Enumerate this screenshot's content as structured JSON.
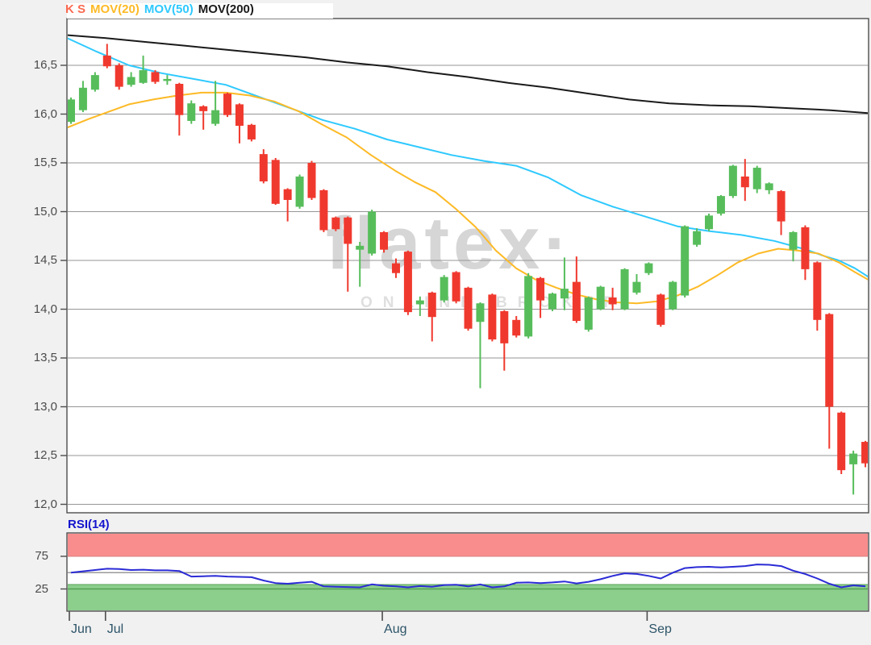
{
  "window": {
    "background": "#f1f1f1",
    "plot_background": "#ffffff",
    "border_color": "#4d4d4d",
    "grid_color": "#969696",
    "tick_color": "#4d4d4d"
  },
  "legend": {
    "items": [
      {
        "label": "K S",
        "color": "#fa6a52"
      },
      {
        "label": "MOV(20)",
        "color": "#fdba26"
      },
      {
        "label": "MOV(50)",
        "color": "#2ec9ff"
      },
      {
        "label": "MOV(200)",
        "color": "#1a1a1a"
      }
    ]
  },
  "watermark": {
    "line1": "flatex·",
    "line2": "ONLINE BROKER",
    "color1": "#d6d6d6",
    "color2": "#dfdfdf"
  },
  "price_axis": {
    "label_color": "#4b4b4b",
    "ticks": [
      {
        "label": "16,5",
        "value": 16.5
      },
      {
        "label": "16,0",
        "value": 16.0
      },
      {
        "label": "15,5",
        "value": 15.5
      },
      {
        "label": "15,0",
        "value": 15.0
      },
      {
        "label": "14,5",
        "value": 14.5
      },
      {
        "label": "14,0",
        "value": 14.0
      },
      {
        "label": "13,5",
        "value": 13.5
      },
      {
        "label": "13,0",
        "value": 13.0
      },
      {
        "label": "12,5",
        "value": 12.5
      },
      {
        "label": "12,0",
        "value": 12.0
      }
    ]
  },
  "time_axis": {
    "label_color": "#2d5468",
    "months": [
      {
        "label": "Jun",
        "candle_index": 0
      },
      {
        "label": "Jul",
        "candle_index": 3
      },
      {
        "label": "Aug",
        "candle_index": 26
      },
      {
        "label": "Sep",
        "candle_index": 48
      }
    ]
  },
  "rsi_panel": {
    "title": "RSI(14)",
    "title_color": "#1515ce",
    "ticks": [
      {
        "label": "75",
        "value": 75
      },
      {
        "label": "25",
        "value": 25
      }
    ],
    "overbought_band_color": "#f98d8d",
    "oversold_band_color": "#8cce8c",
    "band_edge_red": "#d97b7b",
    "band_edge_green": "#55a055",
    "midline_color": "#9a9a9a",
    "line_color": "#2b2bd6"
  },
  "chart_data": {
    "type": "candlestick",
    "title": "K S",
    "up_color": "#57bd5b",
    "down_color": "#f0392e",
    "ylim": [
      11.9,
      16.97
    ],
    "y_ticks": [
      16.5,
      16.0,
      15.5,
      15.0,
      14.5,
      14.0,
      13.5,
      13.0,
      12.5,
      12.0
    ],
    "candles": [
      [
        15.92,
        16.17,
        15.9,
        16.15
      ],
      [
        16.04,
        16.34,
        16.02,
        16.27
      ],
      [
        16.25,
        16.43,
        16.23,
        16.4
      ],
      [
        16.6,
        16.72,
        16.47,
        16.49
      ],
      [
        16.5,
        16.52,
        16.25,
        16.28
      ],
      [
        16.3,
        16.43,
        16.28,
        16.38
      ],
      [
        16.32,
        16.6,
        16.31,
        16.45
      ],
      [
        16.43,
        16.45,
        16.31,
        16.33
      ],
      [
        16.34,
        16.4,
        16.3,
        16.36
      ],
      [
        16.31,
        16.32,
        15.78,
        15.99
      ],
      [
        15.93,
        16.14,
        15.9,
        16.11
      ],
      [
        16.08,
        16.09,
        15.84,
        16.03
      ],
      [
        15.9,
        16.34,
        15.88,
        16.04
      ],
      [
        16.21,
        16.22,
        15.97,
        15.99
      ],
      [
        16.1,
        16.11,
        15.7,
        15.88
      ],
      [
        15.89,
        15.9,
        15.72,
        15.74
      ],
      [
        15.59,
        15.64,
        15.29,
        15.31
      ],
      [
        15.53,
        15.55,
        15.07,
        15.08
      ],
      [
        15.23,
        15.24,
        14.9,
        15.12
      ],
      [
        15.05,
        15.38,
        15.03,
        15.36
      ],
      [
        15.5,
        15.52,
        15.12,
        15.14
      ],
      [
        15.22,
        15.23,
        14.79,
        14.81
      ],
      [
        14.94,
        14.95,
        14.8,
        14.82
      ],
      [
        14.94,
        14.95,
        14.18,
        14.67
      ],
      [
        14.61,
        14.69,
        14.23,
        14.65
      ],
      [
        14.57,
        15.02,
        14.55,
        15.0
      ],
      [
        14.79,
        14.8,
        14.58,
        14.61
      ],
      [
        14.47,
        14.52,
        14.32,
        14.37
      ],
      [
        14.59,
        14.6,
        13.94,
        13.97
      ],
      [
        14.05,
        14.13,
        13.93,
        14.09
      ],
      [
        14.17,
        14.18,
        13.67,
        13.92
      ],
      [
        14.09,
        14.35,
        14.07,
        14.33
      ],
      [
        14.38,
        14.39,
        14.06,
        14.08
      ],
      [
        14.22,
        14.23,
        13.78,
        13.8
      ],
      [
        13.87,
        14.07,
        13.19,
        14.06
      ],
      [
        14.15,
        14.16,
        13.67,
        13.69
      ],
      [
        13.98,
        13.99,
        13.37,
        13.65
      ],
      [
        13.89,
        13.93,
        13.71,
        13.73
      ],
      [
        13.72,
        14.37,
        13.7,
        14.34
      ],
      [
        14.32,
        14.33,
        13.91,
        14.09
      ],
      [
        14.0,
        14.17,
        13.98,
        14.16
      ],
      [
        14.11,
        14.53,
        13.99,
        14.21
      ],
      [
        14.28,
        14.54,
        13.86,
        13.88
      ],
      [
        13.79,
        14.13,
        13.77,
        14.12
      ],
      [
        14.0,
        14.24,
        13.99,
        14.23
      ],
      [
        14.12,
        14.22,
        13.99,
        14.05
      ],
      [
        14.0,
        14.42,
        13.99,
        14.41
      ],
      [
        14.17,
        14.36,
        14.15,
        14.28
      ],
      [
        14.37,
        14.48,
        14.35,
        14.47
      ],
      [
        14.15,
        14.16,
        13.82,
        13.84
      ],
      [
        14.0,
        14.29,
        13.99,
        14.28
      ],
      [
        14.14,
        14.86,
        14.12,
        14.85
      ],
      [
        14.66,
        14.83,
        14.64,
        14.8
      ],
      [
        14.82,
        14.98,
        14.8,
        14.96
      ],
      [
        14.98,
        15.17,
        14.96,
        15.16
      ],
      [
        15.16,
        15.48,
        15.14,
        15.47
      ],
      [
        15.36,
        15.54,
        15.11,
        15.25
      ],
      [
        15.23,
        15.47,
        15.19,
        15.45
      ],
      [
        15.22,
        15.3,
        15.18,
        15.29
      ],
      [
        15.21,
        15.22,
        14.76,
        14.9
      ],
      [
        14.61,
        14.8,
        14.49,
        14.79
      ],
      [
        14.84,
        14.86,
        14.3,
        14.41
      ],
      [
        14.48,
        14.49,
        13.78,
        13.89
      ],
      [
        13.95,
        13.96,
        12.57,
        13.0
      ],
      [
        12.94,
        12.95,
        12.31,
        12.35
      ],
      [
        12.41,
        12.55,
        12.1,
        12.52
      ],
      [
        12.64,
        12.65,
        12.38,
        12.42
      ]
    ],
    "overlays": [
      {
        "name": "MOV(20)",
        "color": "#fdba26",
        "points_x_value": [
          [
            83,
            15.86
          ],
          [
            110,
            15.95
          ],
          [
            130,
            16.01
          ],
          [
            160,
            16.1
          ],
          [
            190,
            16.15
          ],
          [
            220,
            16.19
          ],
          [
            250,
            16.22
          ],
          [
            280,
            16.22
          ],
          [
            310,
            16.19
          ],
          [
            340,
            16.13
          ],
          [
            370,
            16.03
          ],
          [
            400,
            15.89
          ],
          [
            430,
            15.76
          ],
          [
            460,
            15.58
          ],
          [
            490,
            15.42
          ],
          [
            515,
            15.3
          ],
          [
            540,
            15.2
          ],
          [
            565,
            15.03
          ],
          [
            590,
            14.84
          ],
          [
            615,
            14.6
          ],
          [
            640,
            14.42
          ],
          [
            665,
            14.3
          ],
          [
            690,
            14.22
          ],
          [
            715,
            14.15
          ],
          [
            740,
            14.1
          ],
          [
            765,
            14.07
          ],
          [
            790,
            14.06
          ],
          [
            815,
            14.08
          ],
          [
            840,
            14.14
          ],
          [
            865,
            14.23
          ],
          [
            890,
            14.35
          ],
          [
            915,
            14.48
          ],
          [
            940,
            14.57
          ],
          [
            965,
            14.62
          ],
          [
            990,
            14.6
          ],
          [
            1015,
            14.57
          ],
          [
            1040,
            14.48
          ],
          [
            1060,
            14.38
          ],
          [
            1077,
            14.3
          ]
        ]
      },
      {
        "name": "MOV(50)",
        "color": "#2ec9ff",
        "points_x_value": [
          [
            83,
            16.78
          ],
          [
            120,
            16.64
          ],
          [
            160,
            16.5
          ],
          [
            200,
            16.42
          ],
          [
            240,
            16.36
          ],
          [
            280,
            16.3
          ],
          [
            320,
            16.18
          ],
          [
            360,
            16.06
          ],
          [
            400,
            15.94
          ],
          [
            440,
            15.85
          ],
          [
            480,
            15.74
          ],
          [
            520,
            15.66
          ],
          [
            560,
            15.58
          ],
          [
            600,
            15.52
          ],
          [
            640,
            15.47
          ],
          [
            680,
            15.35
          ],
          [
            720,
            15.17
          ],
          [
            760,
            15.05
          ],
          [
            800,
            14.95
          ],
          [
            840,
            14.85
          ],
          [
            880,
            14.8
          ],
          [
            920,
            14.76
          ],
          [
            960,
            14.7
          ],
          [
            1000,
            14.61
          ],
          [
            1020,
            14.55
          ],
          [
            1040,
            14.5
          ],
          [
            1060,
            14.42
          ],
          [
            1077,
            14.33
          ]
        ]
      },
      {
        "name": "MOV(200)",
        "color": "#1a1a1a",
        "points_x_value": [
          [
            83,
            16.81
          ],
          [
            130,
            16.78
          ],
          [
            180,
            16.74
          ],
          [
            230,
            16.7
          ],
          [
            280,
            16.66
          ],
          [
            330,
            16.62
          ],
          [
            380,
            16.58
          ],
          [
            430,
            16.53
          ],
          [
            480,
            16.49
          ],
          [
            530,
            16.43
          ],
          [
            580,
            16.38
          ],
          [
            630,
            16.32
          ],
          [
            680,
            16.27
          ],
          [
            730,
            16.21
          ],
          [
            780,
            16.15
          ],
          [
            830,
            16.11
          ],
          [
            880,
            16.09
          ],
          [
            930,
            16.08
          ],
          [
            980,
            16.06
          ],
          [
            1030,
            16.04
          ],
          [
            1077,
            16.01
          ]
        ]
      }
    ],
    "rsi": {
      "name": "RSI(14)",
      "period": 14,
      "overbought": 75,
      "oversold": 25,
      "values": [
        50,
        52,
        54,
        56,
        55.5,
        54,
        54.5,
        53.5,
        53.5,
        52.5,
        44,
        44.5,
        45,
        44,
        43.5,
        43,
        38,
        34,
        33,
        34.5,
        36,
        29,
        28.5,
        28,
        27.5,
        32,
        30,
        29,
        27.5,
        29.5,
        28.5,
        31,
        31.5,
        29,
        32,
        27.5,
        29,
        34.5,
        35,
        34,
        35,
        36.5,
        33.5,
        36,
        40,
        45,
        49,
        48,
        45,
        41,
        50,
        57,
        58.5,
        59,
        58,
        59,
        60,
        62.5,
        62,
        60,
        53,
        48,
        41,
        33,
        27.5,
        30.5,
        29
      ]
    }
  }
}
